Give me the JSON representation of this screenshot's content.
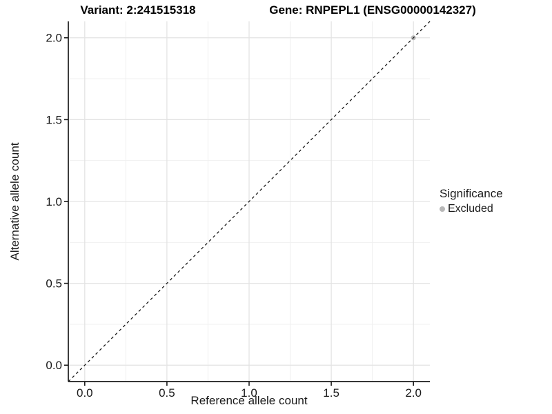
{
  "titles": {
    "variant": "Variant: 2:241515318",
    "gene": "Gene: RNPEPL1 (ENSG00000142327)"
  },
  "axes": {
    "x_label": "Reference allele count",
    "y_label": "Alternative allele count"
  },
  "legend": {
    "title": "Significance",
    "items": [
      {
        "label": "Excluded",
        "color": "#b8b8b8"
      }
    ]
  },
  "chart_data": {
    "type": "scatter",
    "title": "Variant: 2:241515318 — Gene: RNPEPL1 (ENSG00000142327)",
    "xlabel": "Reference allele count",
    "ylabel": "Alternative allele count",
    "xlim": [
      -0.1,
      2.1
    ],
    "ylim": [
      -0.1,
      2.1
    ],
    "x_ticks": [
      0.0,
      0.5,
      1.0,
      1.5,
      2.0
    ],
    "y_ticks": [
      0.0,
      0.5,
      1.0,
      1.5,
      2.0
    ],
    "x_minor_ticks": [
      0.25,
      0.75,
      1.25,
      1.75
    ],
    "y_minor_ticks": [
      0.25,
      0.75,
      1.25,
      1.75
    ],
    "tick_decimals": 1,
    "grid": {
      "on": true,
      "major_color": "#e3e3e3",
      "minor_color": "#f0f0f0"
    },
    "reference_line": {
      "type": "identity",
      "from": [
        -0.1,
        -0.1
      ],
      "to": [
        2.1,
        2.1
      ],
      "style": "dashed",
      "color": "#1a1a1a"
    },
    "series": [
      {
        "name": "Excluded",
        "color": "#b8b8b8",
        "points": [
          {
            "x": 2.0,
            "y": 2.0
          }
        ]
      }
    ],
    "legend_position": "right",
    "axis_color": "#1a1a1a"
  }
}
